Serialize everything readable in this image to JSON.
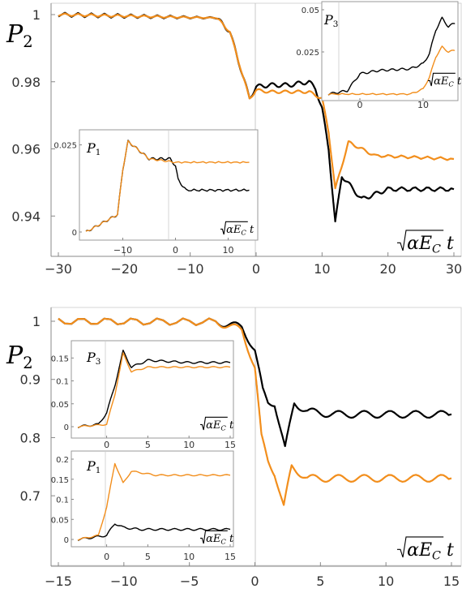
{
  "colors": {
    "black_series": "#000000",
    "orange_series": "#f28e1c",
    "axis": "#888888",
    "tick_text": "#333333"
  },
  "chart_data": [
    {
      "type": "line",
      "panel": "top-main",
      "ylabel": "P2",
      "xlabel": "√(αE_C) t",
      "xlim": [
        -30,
        30
      ],
      "ylim": [
        0.935,
        1.0
      ],
      "xticks": [
        "-30",
        "-20",
        "-10",
        "0",
        "10",
        "20",
        "30"
      ],
      "yticks": [
        "0.94",
        "0.96",
        "0.98",
        "1"
      ],
      "series": [
        {
          "color": "black",
          "points": [
            [
              -30,
              1.0
            ],
            [
              -6,
              0.999
            ],
            [
              -4,
              0.995
            ],
            [
              -2.5,
              0.985
            ],
            [
              -1,
              0.975
            ],
            [
              0,
              0.9785
            ],
            [
              2,
              0.979
            ],
            [
              5,
              0.979
            ],
            [
              8,
              0.98
            ],
            [
              9,
              0.978
            ],
            [
              10,
              0.972
            ],
            [
              11,
              0.96
            ],
            [
              12,
              0.938
            ],
            [
              13,
              0.952
            ],
            [
              16,
              0.945
            ],
            [
              20,
              0.948
            ],
            [
              30,
              0.948
            ]
          ]
        },
        {
          "color": "orange",
          "points": [
            [
              -30,
              1.0
            ],
            [
              -6,
              0.999
            ],
            [
              -4,
              0.995
            ],
            [
              -2.5,
              0.985
            ],
            [
              -1,
              0.975
            ],
            [
              0,
              0.9775
            ],
            [
              2,
              0.977
            ],
            [
              5,
              0.977
            ],
            [
              8,
              0.977
            ],
            [
              10,
              0.975
            ],
            [
              11,
              0.965
            ],
            [
              12,
              0.948
            ],
            [
              14,
              0.962
            ],
            [
              18,
              0.958
            ],
            [
              30,
              0.957
            ]
          ]
        }
      ],
      "insets": [
        {
          "ylabel": "P1",
          "xlabel": "√(αE_C) t",
          "xlim": [
            -17,
            15
          ],
          "ylim": [
            0,
            0.027
          ],
          "xticks": [
            "-10",
            "0",
            "10"
          ],
          "yticks": [
            "0",
            "0.025"
          ],
          "series": [
            {
              "color": "black",
              "points": [
                [
                  -17,
                  0
                ],
                [
                  -11,
                  0.005
                ],
                [
                  -10,
                  0.018
                ],
                [
                  -9,
                  0.026
                ],
                [
                  -5,
                  0.021
                ],
                [
                  -1,
                  0.021
                ],
                [
                  0,
                  0.019
                ],
                [
                  0.5,
                  0.015
                ],
                [
                  2,
                  0.012
                ],
                [
                  14,
                  0.012
                ]
              ]
            },
            {
              "color": "orange",
              "points": [
                [
                  -17,
                  0
                ],
                [
                  -11,
                  0.005
                ],
                [
                  -10,
                  0.018
                ],
                [
                  -9,
                  0.026
                ],
                [
                  -5,
                  0.021
                ],
                [
                  0,
                  0.02
                ],
                [
                  14,
                  0.02
                ]
              ]
            }
          ]
        },
        {
          "ylabel": "P3",
          "xlabel": "√(αE_C) t",
          "xlim": [
            -5,
            15
          ],
          "ylim": [
            0,
            0.05
          ],
          "xticks": [
            "0",
            "10"
          ],
          "yticks": [
            "0.025",
            "0.05"
          ],
          "series": [
            {
              "color": "black",
              "points": [
                [
                  -5,
                  0
                ],
                [
                  -2,
                  0.002
                ],
                [
                  0,
                  0.012
                ],
                [
                  3,
                  0.014
                ],
                [
                  8,
                  0.015
                ],
                [
                  10,
                  0.018
                ],
                [
                  11,
                  0.024
                ],
                [
                  12,
                  0.038
                ],
                [
                  13,
                  0.045
                ],
                [
                  14,
                  0.04
                ],
                [
                  15,
                  0.042
                ]
              ]
            },
            {
              "color": "orange",
              "points": [
                [
                  -5,
                  0
                ],
                [
                  8,
                  0
                ],
                [
                  10,
                  0.003
                ],
                [
                  11,
                  0.01
                ],
                [
                  12,
                  0.022
                ],
                [
                  13,
                  0.028
                ],
                [
                  14,
                  0.025
                ],
                [
                  15,
                  0.026
                ]
              ]
            }
          ]
        }
      ]
    },
    {
      "type": "line",
      "panel": "bottom-main",
      "ylabel": "P2",
      "xlabel": "√(αE_C) t",
      "xlim": [
        -15,
        15
      ],
      "ylim": [
        0.65,
        1.0
      ],
      "xticks": [
        "-15",
        "-10",
        "-5",
        "0",
        "5",
        "10",
        "15"
      ],
      "yticks": [
        "0.7",
        "0.8",
        "0.9",
        "1"
      ],
      "series": [
        {
          "color": "black",
          "points": [
            [
              -15,
              1.0
            ],
            [
              -3,
              0.999
            ],
            [
              -1,
              0.99
            ],
            [
              0,
              0.95
            ],
            [
              0.6,
              0.88
            ],
            [
              1,
              0.86
            ],
            [
              1.5,
              0.86
            ],
            [
              2.3,
              0.78
            ],
            [
              3,
              0.86
            ],
            [
              4,
              0.845
            ],
            [
              6,
              0.84
            ],
            [
              10,
              0.84
            ],
            [
              15,
              0.84
            ]
          ]
        },
        {
          "color": "orange",
          "points": [
            [
              -15,
              1.0
            ],
            [
              -3,
              0.999
            ],
            [
              -1,
              0.985
            ],
            [
              0,
              0.92
            ],
            [
              0.5,
              0.8
            ],
            [
              1,
              0.76
            ],
            [
              1.5,
              0.74
            ],
            [
              2.2,
              0.68
            ],
            [
              2.8,
              0.75
            ],
            [
              4,
              0.73
            ],
            [
              6,
              0.73
            ],
            [
              10,
              0.73
            ],
            [
              15,
              0.73
            ]
          ]
        }
      ],
      "insets": [
        {
          "ylabel": "P3",
          "xlabel": "√(αE_C) t",
          "xlim": [
            -3.5,
            15
          ],
          "ylim": [
            0,
            0.17
          ],
          "xticks": [
            "0",
            "5",
            "10",
            "15"
          ],
          "yticks": [
            "0",
            "0.05",
            "0.1",
            "0.15"
          ],
          "series": [
            {
              "color": "black",
              "points": [
                [
                  -3.5,
                  0
                ],
                [
                  -1,
                  0.005
                ],
                [
                  0,
                  0.03
                ],
                [
                  1,
                  0.09
                ],
                [
                  2,
                  0.165
                ],
                [
                  3,
                  0.13
                ],
                [
                  5,
                  0.145
                ],
                [
                  10,
                  0.14
                ],
                [
                  15,
                  0.14
                ]
              ]
            },
            {
              "color": "orange",
              "points": [
                [
                  -3.5,
                  0
                ],
                [
                  0,
                  0.005
                ],
                [
                  1,
                  0.07
                ],
                [
                  2,
                  0.16
                ],
                [
                  3,
                  0.12
                ],
                [
                  5,
                  0.13
                ],
                [
                  10,
                  0.13
                ],
                [
                  15,
                  0.13
                ]
              ]
            }
          ]
        },
        {
          "ylabel": "P1",
          "xlabel": "√(αE_C) t",
          "xlim": [
            -3.5,
            15
          ],
          "ylim": [
            0,
            0.2
          ],
          "xticks": [
            "0",
            "5",
            "10",
            "15"
          ],
          "yticks": [
            "0",
            "0.05",
            "0.1",
            "0.15",
            "0.2"
          ],
          "series": [
            {
              "color": "black",
              "points": [
                [
                  -3.5,
                  0
                ],
                [
                  0,
                  0.01
                ],
                [
                  1,
                  0.04
                ],
                [
                  2,
                  0.03
                ],
                [
                  4,
                  0.025
                ],
                [
                  10,
                  0.025
                ],
                [
                  15,
                  0.025
                ]
              ]
            },
            {
              "color": "orange",
              "points": [
                [
                  -3.5,
                  0
                ],
                [
                  -1,
                  0.01
                ],
                [
                  0,
                  0.08
                ],
                [
                  1,
                  0.19
                ],
                [
                  2,
                  0.14
                ],
                [
                  3,
                  0.17
                ],
                [
                  6,
                  0.16
                ],
                [
                  10,
                  0.16
                ],
                [
                  15,
                  0.16
                ]
              ]
            }
          ]
        }
      ]
    }
  ]
}
